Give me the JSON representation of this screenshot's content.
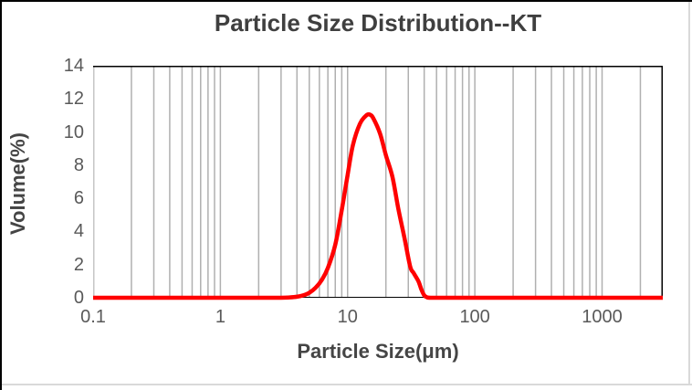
{
  "title": "Particle Size Distribution--KT",
  "axes": {
    "x_title": "Particle Size(μm)",
    "y_title": "Volume(%)"
  },
  "colors": {
    "curve": "#FF0000",
    "gridline": "#b0b0b0",
    "left_axis_line": "#c6c6c6",
    "plot_border": "#000000",
    "tick_text": "#595959",
    "title_text": "#3f3f3f",
    "frame_dark": "#000000",
    "frame_light": "#d9d9d9"
  },
  "chart_data": {
    "type": "line",
    "title": "Particle Size Distribution--KT",
    "xlabel": "Particle Size(μm)",
    "ylabel": "Volume(%)",
    "x_scale": "log",
    "xlim": [
      0.1,
      3000
    ],
    "ylim": [
      0,
      14
    ],
    "x_ticks": [
      0.1,
      1,
      10,
      100,
      1000
    ],
    "x_tick_labels": [
      "0.1",
      "1",
      "10",
      "100",
      "1000"
    ],
    "y_ticks": [
      0,
      2,
      4,
      6,
      8,
      10,
      12,
      14
    ],
    "y_tick_labels": [
      "0",
      "2",
      "4",
      "6",
      "8",
      "10",
      "12",
      "14"
    ],
    "grid": "vertical minor log gridlines only (multiples 2-9 of each decade plus 1,10,100,1000,2000)",
    "legend": "none",
    "peak": {
      "x_um": 14.5,
      "volume_pct": 11.0
    },
    "series": [
      {
        "name": "KT",
        "color": "#FF0000",
        "x": [
          0.1,
          0.5,
          1,
          2,
          3,
          3.5,
          4,
          4.5,
          5,
          5.6,
          6.3,
          7,
          8,
          9,
          10,
          11,
          12.5,
          14,
          15,
          16,
          18,
          20,
          22.5,
          25,
          28,
          31,
          33,
          36,
          38,
          40,
          42,
          45,
          60,
          100,
          300,
          1000,
          2000,
          3000
        ],
        "y": [
          0,
          0,
          0,
          0,
          0,
          0.02,
          0.06,
          0.15,
          0.3,
          0.6,
          1.1,
          1.8,
          3.2,
          5.3,
          7.4,
          9.2,
          10.5,
          11.0,
          11.05,
          10.8,
          9.9,
          8.6,
          7.3,
          5.4,
          3.6,
          1.9,
          1.5,
          1.0,
          0.5,
          0.15,
          0.03,
          0,
          0,
          0,
          0,
          0,
          0,
          0
        ]
      }
    ]
  }
}
